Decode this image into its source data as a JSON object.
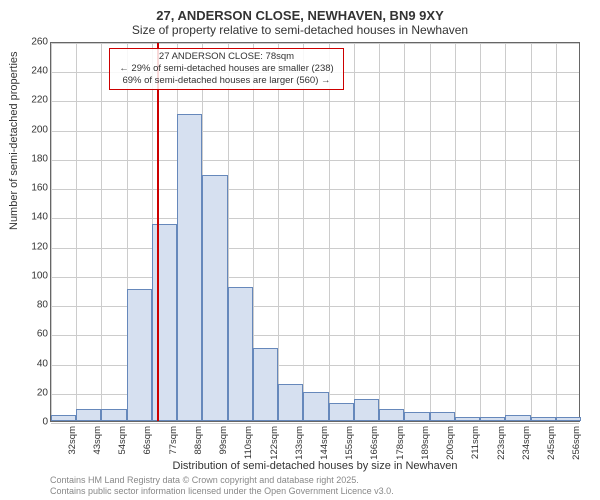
{
  "title_main": "27, ANDERSON CLOSE, NEWHAVEN, BN9 9XY",
  "title_sub": "Size of property relative to semi-detached houses in Newhaven",
  "ylabel": "Number of semi-detached properties",
  "xlabel": "Distribution of semi-detached houses by size in Newhaven",
  "attrib1": "Contains HM Land Registry data © Crown copyright and database right 2025.",
  "attrib2": "Contains public sector information licensed under the Open Government Licence v3.0.",
  "anno_line1": "27 ANDERSON CLOSE: 78sqm",
  "anno_line2": "← 29% of semi-detached houses are smaller (238)",
  "anno_line3": "69% of semi-detached houses are larger (560) →",
  "histogram": {
    "type": "histogram",
    "ylim": [
      0,
      260
    ],
    "ytick_step": 20,
    "x_categories": [
      "32sqm",
      "43sqm",
      "54sqm",
      "66sqm",
      "77sqm",
      "88sqm",
      "99sqm",
      "110sqm",
      "122sqm",
      "133sqm",
      "144sqm",
      "155sqm",
      "166sqm",
      "178sqm",
      "189sqm",
      "200sqm",
      "211sqm",
      "223sqm",
      "234sqm",
      "245sqm",
      "256sqm"
    ],
    "values": [
      4,
      8,
      8,
      90,
      135,
      210,
      168,
      92,
      50,
      25,
      20,
      12,
      15,
      8,
      6,
      6,
      3,
      3,
      4,
      3,
      3
    ],
    "bar_fill": "#d6e0f0",
    "bar_stroke": "#6688bb",
    "marker_value_sqm": 78,
    "marker_x_min": 32,
    "marker_x_max": 262,
    "marker_color": "#cc0000",
    "anno_border": "#cc0000",
    "background_color": "#ffffff",
    "grid_color": "#cccccc",
    "title_fontsize": 13,
    "label_fontsize": 11,
    "tick_fontsize": 10
  }
}
